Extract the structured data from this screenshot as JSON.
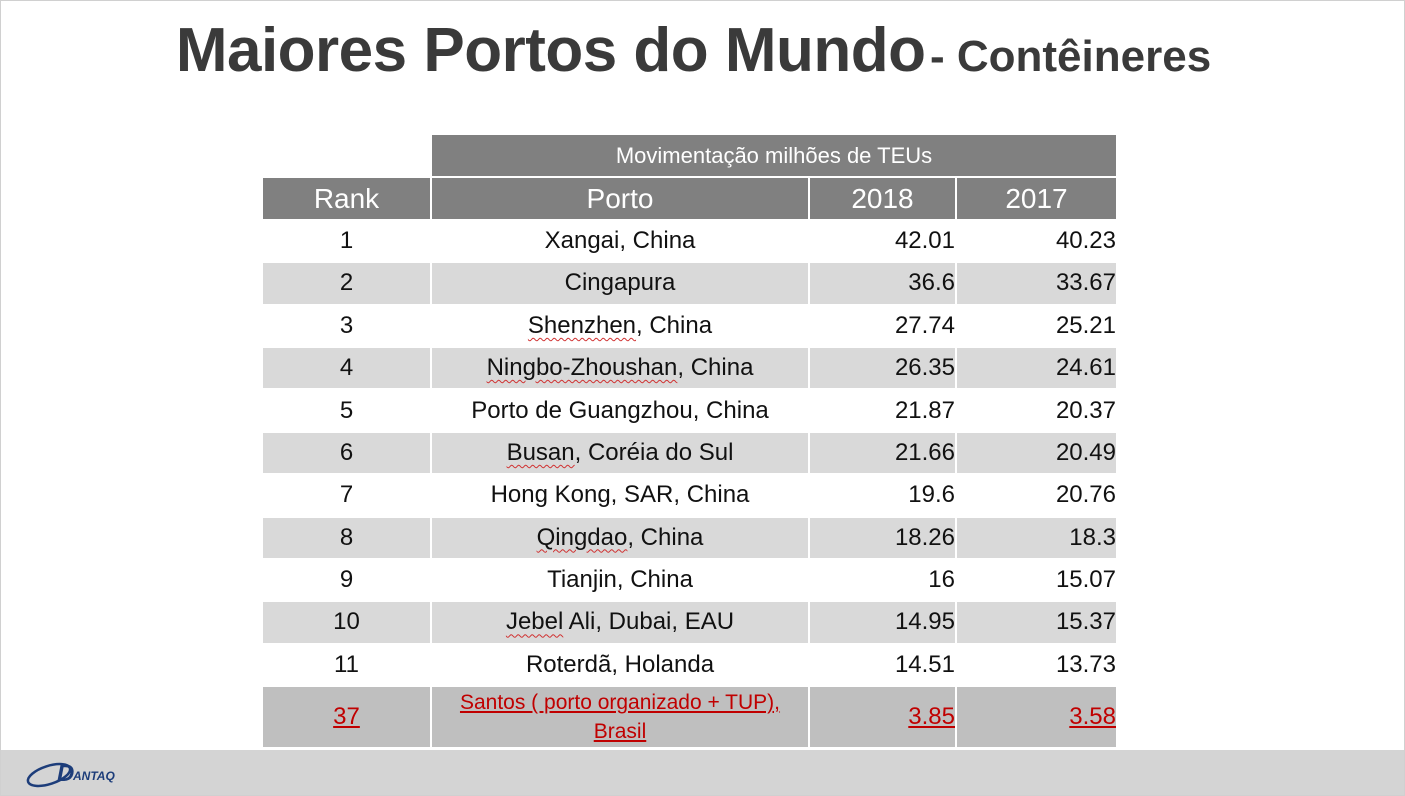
{
  "title": {
    "main": "Maiores Portos do Mundo",
    "sub": "- Contêineres"
  },
  "table": {
    "group_header": "Movimentação milhões de TEUs",
    "columns": {
      "rank": "Rank",
      "port": "Porto",
      "y2018": "2018",
      "y2017": "2017"
    },
    "rows": [
      {
        "rank": "1",
        "port": "Xangai, China",
        "v2018": "42.01",
        "v2017": "40.23"
      },
      {
        "rank": "2",
        "port": "Cingapura",
        "v2018": "36.6",
        "v2017": "33.67"
      },
      {
        "rank": "3",
        "port_a": "Shenzhen",
        "port_b": ", China",
        "v2018": "27.74",
        "v2017": "25.21"
      },
      {
        "rank": "4",
        "port_a": "Ningbo-Zhoushan",
        "port_b": ", China",
        "v2018": "26.35",
        "v2017": "24.61"
      },
      {
        "rank": "5",
        "port": "Porto de Guangzhou, China",
        "v2018": "21.87",
        "v2017": "20.37"
      },
      {
        "rank": "6",
        "port_a": "Busan",
        "port_b": ", Coréia do Sul",
        "v2018": "21.66",
        "v2017": "20.49"
      },
      {
        "rank": "7",
        "port": "Hong Kong, SAR, China",
        "v2018": "19.6",
        "v2017": "20.76"
      },
      {
        "rank": "8",
        "port_a": "Qingdao",
        "port_b": ", China",
        "v2018": "18.26",
        "v2017": "18.3"
      },
      {
        "rank": "9",
        "port": "Tianjin, China",
        "v2018": "16",
        "v2017": "15.07"
      },
      {
        "rank": "10",
        "port_a": "Jebel",
        "port_b": " Ali, Dubai, EAU",
        "v2018": "14.95",
        "v2017": "15.37"
      },
      {
        "rank": "11",
        "port": "Roterdã, Holanda",
        "v2018": "14.51",
        "v2017": "13.73"
      },
      {
        "rank": "37",
        "port": "Santos ( porto organizado + TUP), Brasil",
        "v2018": "3.85",
        "v2017": "3.58"
      }
    ]
  },
  "logo": {
    "text": "ANTAQ",
    "letter": "D",
    "icon": "antaq-logo-icon"
  },
  "colors": {
    "header": "#808080",
    "alt_row": "#d9d9d9",
    "highlight_row": "#bfbfbf",
    "highlight_text": "#c00000",
    "title": "#3a3a3a",
    "footer": "#d4d4d4"
  }
}
